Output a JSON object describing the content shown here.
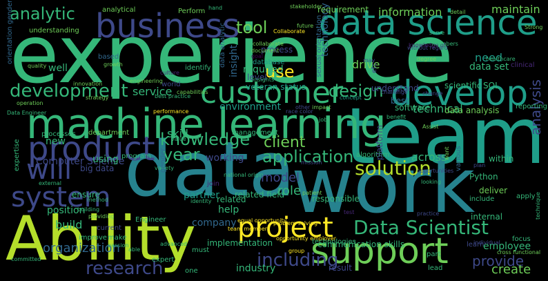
{
  "palette": {
    "background": "#000000",
    "yellow": "#fde725",
    "lightgreen": "#b5de2b",
    "green": "#6ece58",
    "mint": "#35b779",
    "teal": "#1f9e89",
    "blue": "#26828e",
    "steel": "#31688e",
    "indigo": "#3e4989",
    "purple": "#482878",
    "violet": "#440154"
  },
  "words": [
    "experience",
    "team",
    "data",
    "work",
    "Ability",
    "machine learning",
    "business",
    "data science",
    "customer",
    "develop",
    "product",
    "support",
    "solution",
    "project",
    "will",
    "system",
    "Data Scientist",
    "development",
    "knowledge",
    "analytic",
    "design",
    "application",
    "research",
    "including",
    "year",
    "client",
    "tool",
    "use",
    "model",
    "analysis",
    "provide",
    "create",
    "service",
    "skill",
    "environment",
    "technical",
    "information",
    "maintain",
    "required",
    "well",
    "drive",
    "need",
    "data set",
    "level",
    "insight",
    "technology",
    "process",
    "understand",
    "new",
    "position",
    "company",
    "employee",
    "organization",
    "build",
    "related",
    "working",
    "partner",
    "role",
    "across",
    "help",
    "communication skills",
    "Computer Science",
    "big data",
    "using",
    "program",
    "algorithm",
    "platform",
    "software",
    "expertise",
    "requirement",
    "analytical",
    "Perform",
    "hand",
    "stakeholder",
    "Collaborate",
    "future",
    "data analytic",
    "database",
    "identify",
    "based",
    "growth",
    "quality",
    "understanding",
    "orientation gender",
    "culture",
    "innovation",
    "strategy",
    "operation",
    "engineering",
    "Data Engineer",
    "processes",
    "department",
    "performance",
    "management",
    "race color",
    "veteran status",
    "sexual orientation",
    "national origin",
    "equal opportunity",
    "opportunity employer",
    "problem solving",
    "team member",
    "implementation",
    "technologies",
    "result",
    "industry",
    "one",
    "must",
    "advanced",
    "Engineer",
    "current",
    "improve",
    "make",
    "expert",
    "data analysis",
    "reporting",
    "SQL",
    "scientific",
    "within",
    "Python",
    "deliver",
    "apply",
    "include",
    "internal",
    "various",
    "responsible",
    "test",
    "patient",
    "mission",
    "Assist",
    "healthcare",
    "clinical",
    "Strong",
    "plan",
    "focus",
    "lead",
    "learn",
    "part",
    "technique",
    "cross functional",
    "individual",
    "practice",
    "best",
    "etc",
    "detail",
    "may",
    "without regard",
    "degree",
    "serve",
    "concept",
    "best practice",
    "capabilities",
    "value",
    "variety",
    "world",
    "gender",
    "identity",
    "join",
    "looking",
    "related field",
    "ensure",
    "building",
    "providing",
    "committed",
    "external",
    "method",
    "able",
    "passion",
    "group",
    "want",
    "opportunities",
    "benefit",
    "challenge",
    "change",
    "goal",
    "collaborate",
    "document",
    "insights",
    "impact",
    "job",
    "knowledge of",
    "other",
    "members",
    "excellent",
    "sharing"
  ]
}
